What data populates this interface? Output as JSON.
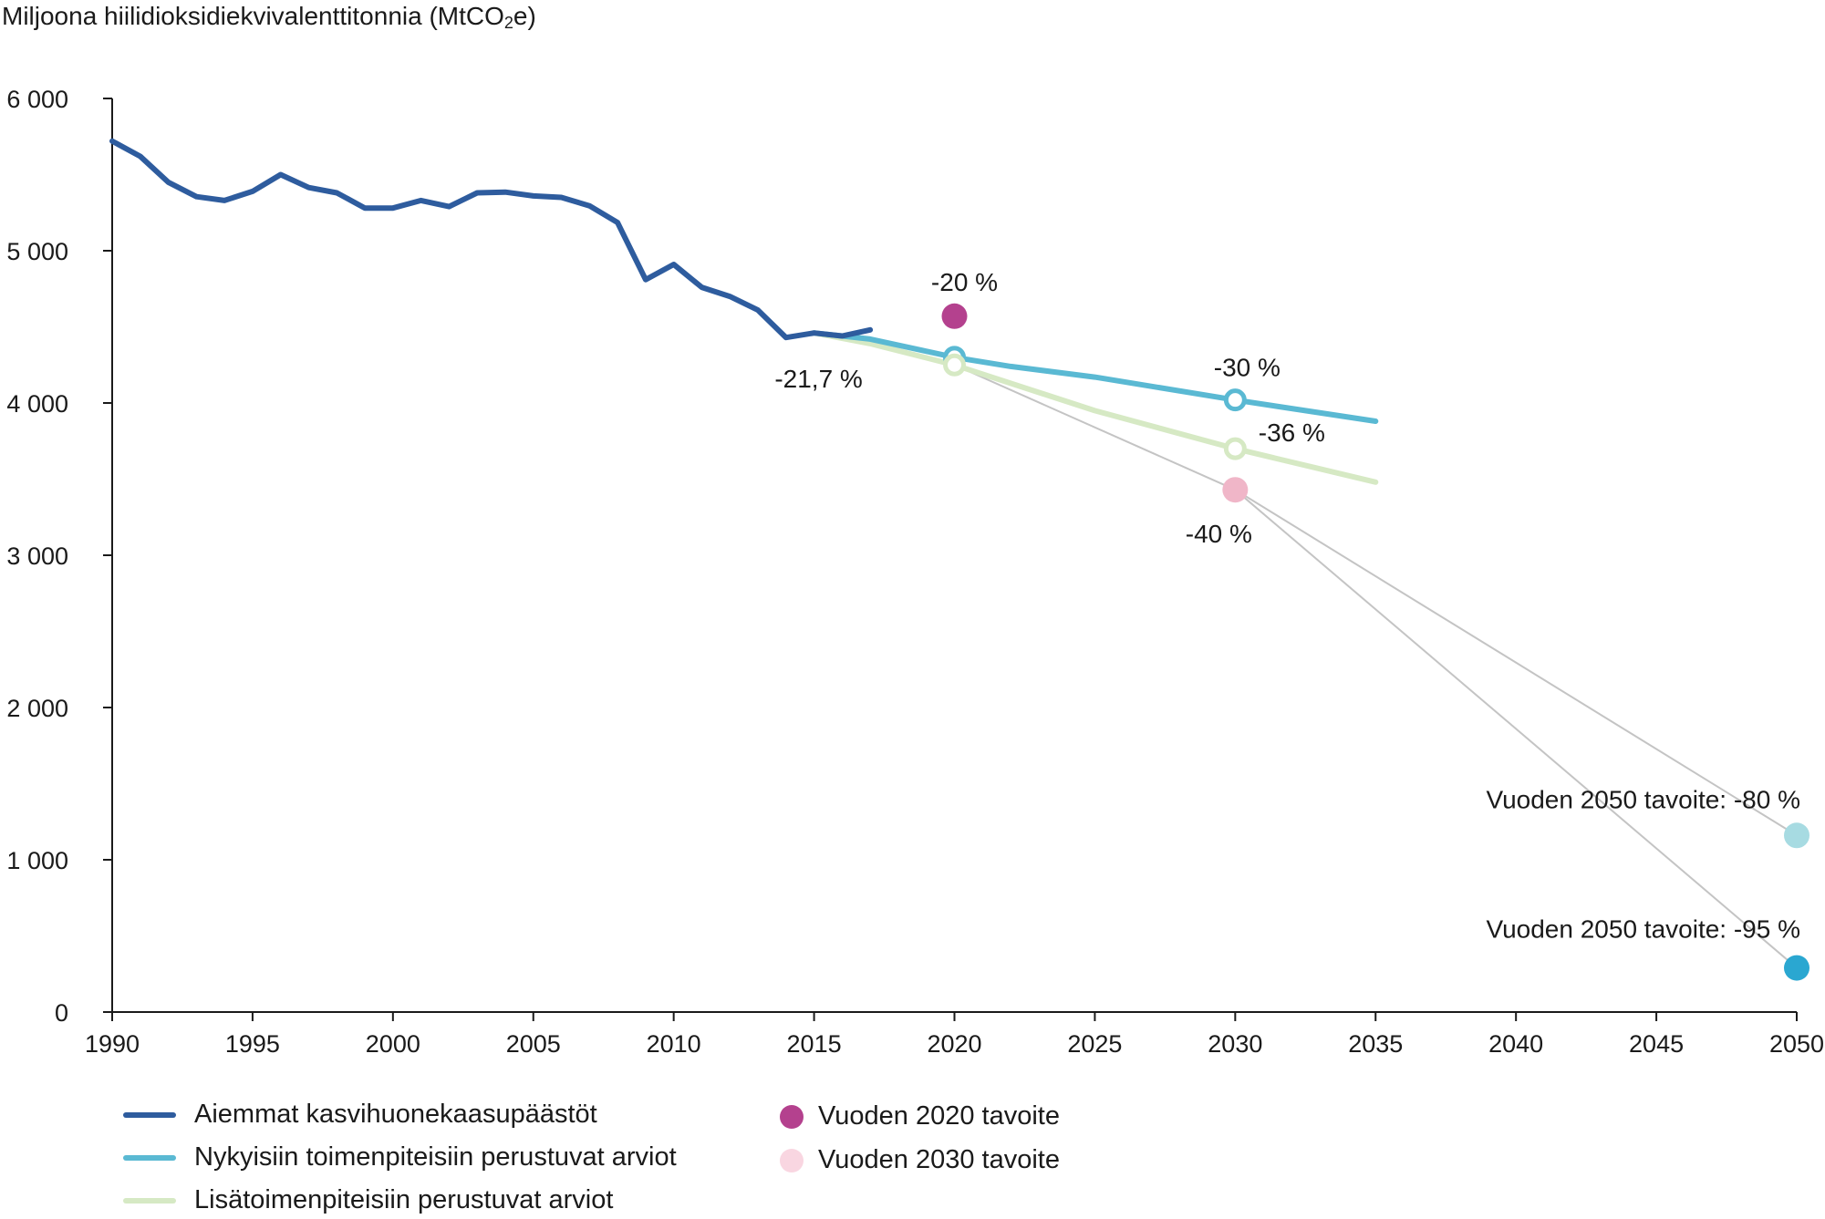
{
  "chart_data": {
    "type": "line",
    "ylabel_main": "Miljoona hiilidioksidiekvivalenttitonnia (MtCO",
    "ylabel_sub": "2",
    "ylabel_end": "e)",
    "xlim": [
      1990,
      2050
    ],
    "ylim": [
      0,
      6000
    ],
    "x_ticks": [
      1990,
      1995,
      2000,
      2005,
      2010,
      2015,
      2020,
      2025,
      2030,
      2035,
      2040,
      2045,
      2050
    ],
    "y_ticks": [
      0,
      1000,
      2000,
      3000,
      4000,
      5000,
      6000
    ],
    "y_tick_labels": [
      "0",
      "1 000",
      "2 000",
      "3 000",
      "4 000",
      "5 000",
      "6 000"
    ],
    "series": [
      {
        "name": "Aiemmat kasvihuonekaasupäästöt",
        "color": "#2e5c9e",
        "x": [
          1990,
          1991,
          1992,
          1993,
          1994,
          1995,
          1996,
          1997,
          1998,
          1999,
          2000,
          2001,
          2002,
          2003,
          2004,
          2005,
          2006,
          2007,
          2008,
          2009,
          2010,
          2011,
          2012,
          2013,
          2014,
          2015,
          2016,
          2017
        ],
        "y": [
          5720,
          5620,
          5450,
          5355,
          5330,
          5390,
          5500,
          5415,
          5380,
          5280,
          5280,
          5330,
          5290,
          5380,
          5385,
          5360,
          5350,
          5295,
          5185,
          4810,
          4910,
          4760,
          4700,
          4610,
          4430,
          4460,
          4440,
          4480
        ]
      },
      {
        "name": "Nykyisiin toimenpiteisiin perustuvat arviot",
        "color": "#5ab9d3",
        "x": [
          2015,
          2017,
          2020,
          2022,
          2025,
          2030,
          2035
        ],
        "y": [
          4460,
          4420,
          4300,
          4240,
          4170,
          4020,
          3880
        ]
      },
      {
        "name": "Lisätoimenpiteisiin perustuvat arviot",
        "color": "#d6e9c4",
        "x": [
          2015,
          2017,
          2020,
          2025,
          2030,
          2035
        ],
        "y": [
          4460,
          4390,
          4250,
          3950,
          3700,
          3480
        ]
      }
    ],
    "targets": [
      {
        "name": "Vuoden 2020 tavoite",
        "x": 2020,
        "y": 4570,
        "color": "#b4418e",
        "label": "-20 %"
      },
      {
        "name": "Vuoden 2030 tavoite",
        "x": 2030,
        "y": 3430,
        "color": "#f0b6c8",
        "label": "-40 %"
      },
      {
        "x": 2050,
        "y": 1160,
        "color": "#a7dbe2",
        "label": "Vuoden 2050 tavoite: -80 %"
      },
      {
        "x": 2050,
        "y": 290,
        "color": "#2aa7d1",
        "label": "Vuoden 2050 tavoite: -95 %"
      }
    ],
    "projection_markers": [
      {
        "x": 2020,
        "y": 4300,
        "color": "#5ab9d3"
      },
      {
        "x": 2020,
        "y": 4250,
        "color": "#d6e9c4"
      },
      {
        "x": 2030,
        "y": 4020,
        "color": "#5ab9d3",
        "label": "-30 %"
      },
      {
        "x": 2030,
        "y": 3700,
        "color": "#d6e9c4",
        "label": "-36 %"
      }
    ],
    "annotations": [
      {
        "text": "-21,7 %",
        "x": 2015,
        "y": 4430
      }
    ],
    "trajectory_lines": [
      {
        "from": [
          2020,
          4250
        ],
        "to": [
          2030,
          3430
        ]
      },
      {
        "from": [
          2030,
          3430
        ],
        "to": [
          2050,
          1160
        ]
      },
      {
        "from": [
          2030,
          3430
        ],
        "to": [
          2050,
          290
        ]
      }
    ],
    "legend": [
      {
        "label": "Aiemmat kasvihuonekaasupäästöt",
        "kind": "line",
        "color": "#2e5c9e"
      },
      {
        "label": "Nykyisiin toimenpiteisiin perustuvat arviot",
        "kind": "line",
        "color": "#5ab9d3"
      },
      {
        "label": "Lisätoimenpiteisiin perustuvat arviot",
        "kind": "line",
        "color": "#d6e9c4"
      },
      {
        "label": "Vuoden 2020 tavoite",
        "kind": "dot",
        "color": "#b4418e"
      },
      {
        "label": "Vuoden 2030 tavoite",
        "kind": "dot",
        "color": "#f9d6e1"
      }
    ],
    "grid": false
  }
}
